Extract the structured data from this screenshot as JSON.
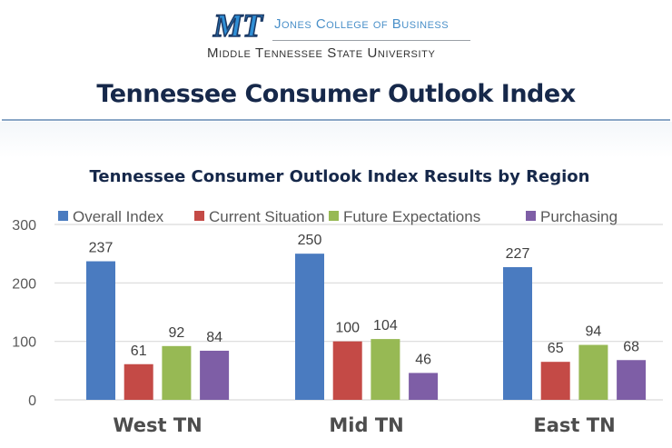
{
  "header": {
    "logo_text": "MT",
    "college": "Jones College of Business",
    "university": "Middle Tennessee State University",
    "page_title": "Tennessee Consumer Outlook Index"
  },
  "colors": {
    "overall": "#4a7bc0",
    "current": "#c44a46",
    "future": "#97b954",
    "purchasing": "#7e5ea6",
    "title": "#16284a",
    "logo_blue": "#2f8fd6"
  },
  "chart_data": {
    "type": "bar",
    "title": "Tennessee Consumer Outlook Index Results by Region",
    "xlabel": "",
    "ylabel": "",
    "ylim": [
      0,
      300
    ],
    "yticks": [
      0,
      100,
      200,
      300
    ],
    "grid": true,
    "legend_position": "top",
    "categories": [
      "West TN",
      "Mid TN",
      "East TN"
    ],
    "series": [
      {
        "name": "Overall Index",
        "color": "#4a7bc0",
        "values": [
          237,
          250,
          227
        ]
      },
      {
        "name": "Current Situation",
        "color": "#c44a46",
        "values": [
          61,
          100,
          65
        ]
      },
      {
        "name": "Future Expectations",
        "color": "#97b954",
        "values": [
          92,
          104,
          94
        ]
      },
      {
        "name": "Purchasing",
        "color": "#7e5ea6",
        "values": [
          84,
          46,
          68
        ]
      }
    ]
  }
}
